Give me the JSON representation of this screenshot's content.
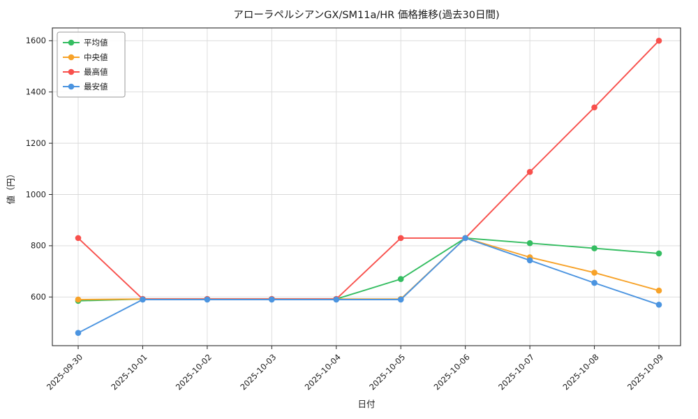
{
  "chart_data": {
    "type": "line",
    "title": "アローラペルシアンGX/SM11a/HR 価格推移(過去30日間)",
    "xlabel": "日付",
    "ylabel": "値（円）",
    "categories": [
      "2025-09-30",
      "2025-10-01",
      "2025-10-02",
      "2025-10-03",
      "2025-10-04",
      "2025-10-05",
      "2025-10-06",
      "2025-10-07",
      "2025-10-08",
      "2025-10-09"
    ],
    "series": [
      {
        "name": "平均値",
        "color": "#34bd61",
        "values": [
          585,
          592,
          592,
          592,
          592,
          670,
          830,
          810,
          790,
          770
        ]
      },
      {
        "name": "中央値",
        "color": "#f7a228",
        "values": [
          590,
          592,
          592,
          592,
          592,
          592,
          830,
          755,
          695,
          625
        ]
      },
      {
        "name": "最高値",
        "color": "#f8504c",
        "values": [
          830,
          592,
          592,
          592,
          592,
          830,
          830,
          1088,
          1340,
          1600
        ]
      },
      {
        "name": "最安値",
        "color": "#4b94e0",
        "values": [
          460,
          590,
          590,
          590,
          590,
          590,
          830,
          743,
          655,
          570
        ]
      }
    ],
    "ylim": [
      410,
      1650
    ],
    "yticks": [
      600,
      800,
      1000,
      1200,
      1400,
      1600
    ],
    "grid": true,
    "legend_position": "upper left",
    "grid_color": "#d9d9d9",
    "axis_color": "#262626",
    "background_color": "#ffffff"
  }
}
